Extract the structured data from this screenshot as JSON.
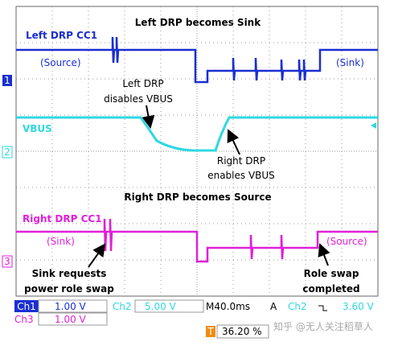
{
  "annotations": {
    "top_title": "Left DRP becomes Sink",
    "ch1_name": "Left DRP CC1",
    "ch1_before": "(Source)",
    "ch1_after": "(Sink)",
    "disable_1": "Left DRP",
    "disable_2": "disables VBUS",
    "vbus": "VBUS",
    "enable_1": "Right DRP",
    "enable_2": "enables VBUS",
    "mid_title": "Right DRP becomes Source",
    "ch3_name": "Right DRP CC1",
    "ch3_before": "(Sink)",
    "ch3_after": "(Source)",
    "request_1": "Sink requests",
    "request_2": "power role swap",
    "done_1": "Role swap",
    "done_2": "completed"
  },
  "markers": {
    "ch1": "1",
    "ch2": "2",
    "ch3": "3"
  },
  "status": {
    "ch1": "Ch1",
    "ch1_scale": "1.00 V",
    "ch2": "Ch2",
    "ch2_scale": "5.00 V",
    "timebase": "M40.0ms",
    "trigger": "A",
    "trigger_ch": "Ch2",
    "trigger_level": "3.60 V",
    "ch3": "Ch3",
    "ch3_scale": "1.00 V",
    "trigger_pos_icon": "T",
    "trigger_pos": "36.20 %"
  },
  "watermark": "知乎 @无人关注稻草人"
}
